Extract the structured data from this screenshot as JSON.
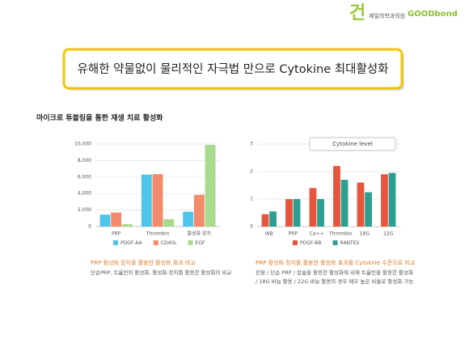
{
  "logo": {
    "mark": "건",
    "clinic": "제일의학과의원",
    "brand": "GOODbond"
  },
  "headline": "유해한 약물없이 물리적인 자극법 만으로 Cytokine 최대활성화",
  "section_title": "마이크로 튜블링을 통한 재생 치료 활성화",
  "chart_data": [
    {
      "type": "bar",
      "categories": [
        "PRP",
        "Thrombin",
        "활성화 장치"
      ],
      "series": [
        {
          "name": "PDGF-AA",
          "color": "#4fc3ea",
          "values": [
            1450,
            6300,
            1800
          ]
        },
        {
          "name": "CD40L",
          "color": "#f28b6c",
          "values": [
            1700,
            6350,
            3850
          ]
        },
        {
          "name": "EGF",
          "color": "#a8dc8c",
          "values": [
            300,
            900,
            9900
          ]
        }
      ],
      "ylim": [
        0,
        10000
      ],
      "yticks": [
        0,
        {
          "value": 2000,
          "label": "2,000"
        },
        {
          "value": 4000,
          "label": "4,000"
        },
        {
          "value": 6000,
          "label": "6,000"
        },
        {
          "value": 8000,
          "label": "8,000"
        },
        {
          "value": 10000,
          "label": "10,000"
        }
      ],
      "grid": true,
      "caption": "PRP 활성화 장치를 활용한 활성화 효과 비교",
      "description": [
        "단순PRP, 트롬빈의 활성화, 활성화 장치를 활용한 활성화의 비교"
      ]
    },
    {
      "type": "bar",
      "annotation": "Cytokine level",
      "categories": [
        "WB",
        "PRP",
        "Ca++",
        "Thrombin",
        "18G",
        "22G"
      ],
      "series": [
        {
          "name": "PDGF-BB",
          "color": "#e8543c",
          "values": [
            0.45,
            1.0,
            1.4,
            2.2,
            1.6,
            1.9
          ]
        },
        {
          "name": "RANTES",
          "color": "#2c9f90",
          "values": [
            0.55,
            1.0,
            1.0,
            1.7,
            1.25,
            1.95
          ]
        }
      ],
      "ylim": [
        0,
        3
      ],
      "yticks": [
        0,
        1,
        2,
        3
      ],
      "grid": true,
      "caption": "PRP 활성화 장치를 활용한 활성화 효과를 Cytokine 수준으로 비교",
      "description": [
        "전혈 / 단순 PRP / 칼슘을 활용한 활성화에 비해 트롬빈을 활용한 활성화",
        "/ 18G 바늘 활용 / 22G 바늘 활용의 경우 매우 높은 비율로 활성화 가능"
      ]
    }
  ]
}
